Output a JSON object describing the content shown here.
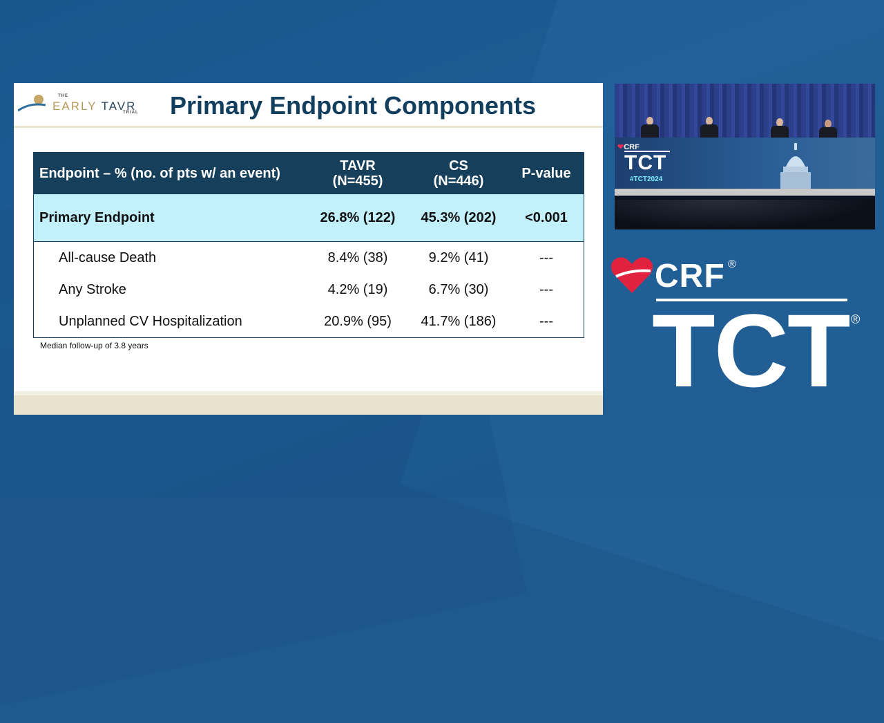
{
  "slide": {
    "logo": {
      "the": "THE",
      "early": "EARLY",
      "tavr": "TAVR",
      "trial": "TRIAL"
    },
    "title": "Primary Endpoint Components",
    "table": {
      "headers": [
        "Endpoint – % (no. of pts w/ an event)",
        "TAVR\n(N=455)",
        "CS\n(N=446)",
        "P-value"
      ],
      "header_tavr_line1": "TAVR",
      "header_tavr_line2": "(N=455)",
      "header_cs_line1": "CS",
      "header_cs_line2": "(N=446)",
      "rows": [
        {
          "label": "Primary Endpoint",
          "tavr": "26.8% (122)",
          "cs": "45.3% (202)",
          "p": "<0.001"
        },
        {
          "label": "All-cause Death",
          "tavr": "8.4% (38)",
          "cs": "9.2% (41)",
          "p": "---"
        },
        {
          "label": "Any Stroke",
          "tavr": "4.2% (19)",
          "cs": "6.7% (30)",
          "p": "---"
        },
        {
          "label": "Unplanned CV Hospitalization",
          "tavr": "20.9% (95)",
          "cs": "41.7% (186)",
          "p": "---"
        }
      ]
    },
    "footnote": "Median follow-up of 3.8 years"
  },
  "video": {
    "crf_label": "CRF",
    "tct_label": "TCT",
    "hashtag": "#TCT2024"
  },
  "brand": {
    "crf": "CRF",
    "tct": "TCT",
    "registered": "®",
    "heart_color": "#e0223f"
  },
  "colors": {
    "background": "#1f5a8e",
    "table_header": "#163f5c",
    "primary_row": "#c2f1fb",
    "title": "#133f5f"
  }
}
